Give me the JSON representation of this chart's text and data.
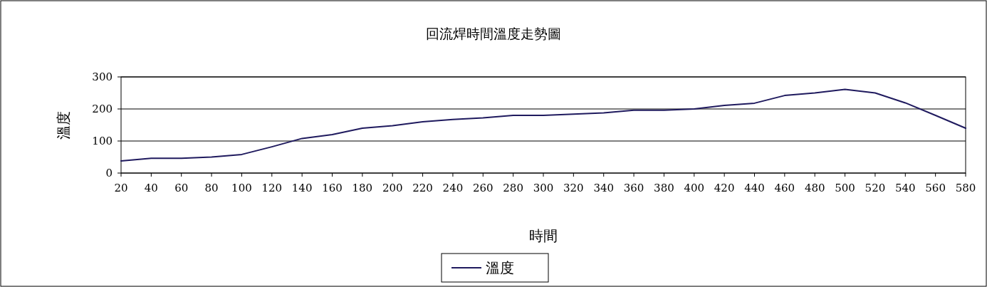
{
  "chart_data": {
    "type": "line",
    "title": "回流焊時間溫度走勢圖",
    "xlabel": "時間",
    "ylabel": "溫度",
    "x": [
      20,
      40,
      60,
      80,
      100,
      120,
      140,
      160,
      180,
      200,
      220,
      240,
      260,
      280,
      300,
      320,
      340,
      360,
      380,
      400,
      420,
      440,
      460,
      480,
      500,
      520,
      540,
      560,
      580
    ],
    "series": [
      {
        "name": "溫度",
        "color": "#1f1a5e",
        "values": [
          38,
          46,
          46,
          50,
          58,
          82,
          108,
          120,
          140,
          148,
          160,
          167,
          172,
          180,
          180,
          184,
          188,
          196,
          196,
          200,
          211,
          218,
          242,
          250,
          261,
          250,
          219,
          180,
          140
        ]
      }
    ],
    "xlim": [
      20,
      580
    ],
    "xticks": [
      20,
      40,
      60,
      80,
      100,
      120,
      140,
      160,
      180,
      200,
      220,
      240,
      260,
      280,
      300,
      320,
      340,
      360,
      380,
      400,
      420,
      440,
      460,
      480,
      500,
      520,
      540,
      560,
      580
    ],
    "ylim": [
      0,
      300
    ],
    "yticks": [
      0,
      100,
      200,
      300
    ],
    "grid": "y",
    "legend": "bottom",
    "marker": "none",
    "line_style": "solid"
  }
}
